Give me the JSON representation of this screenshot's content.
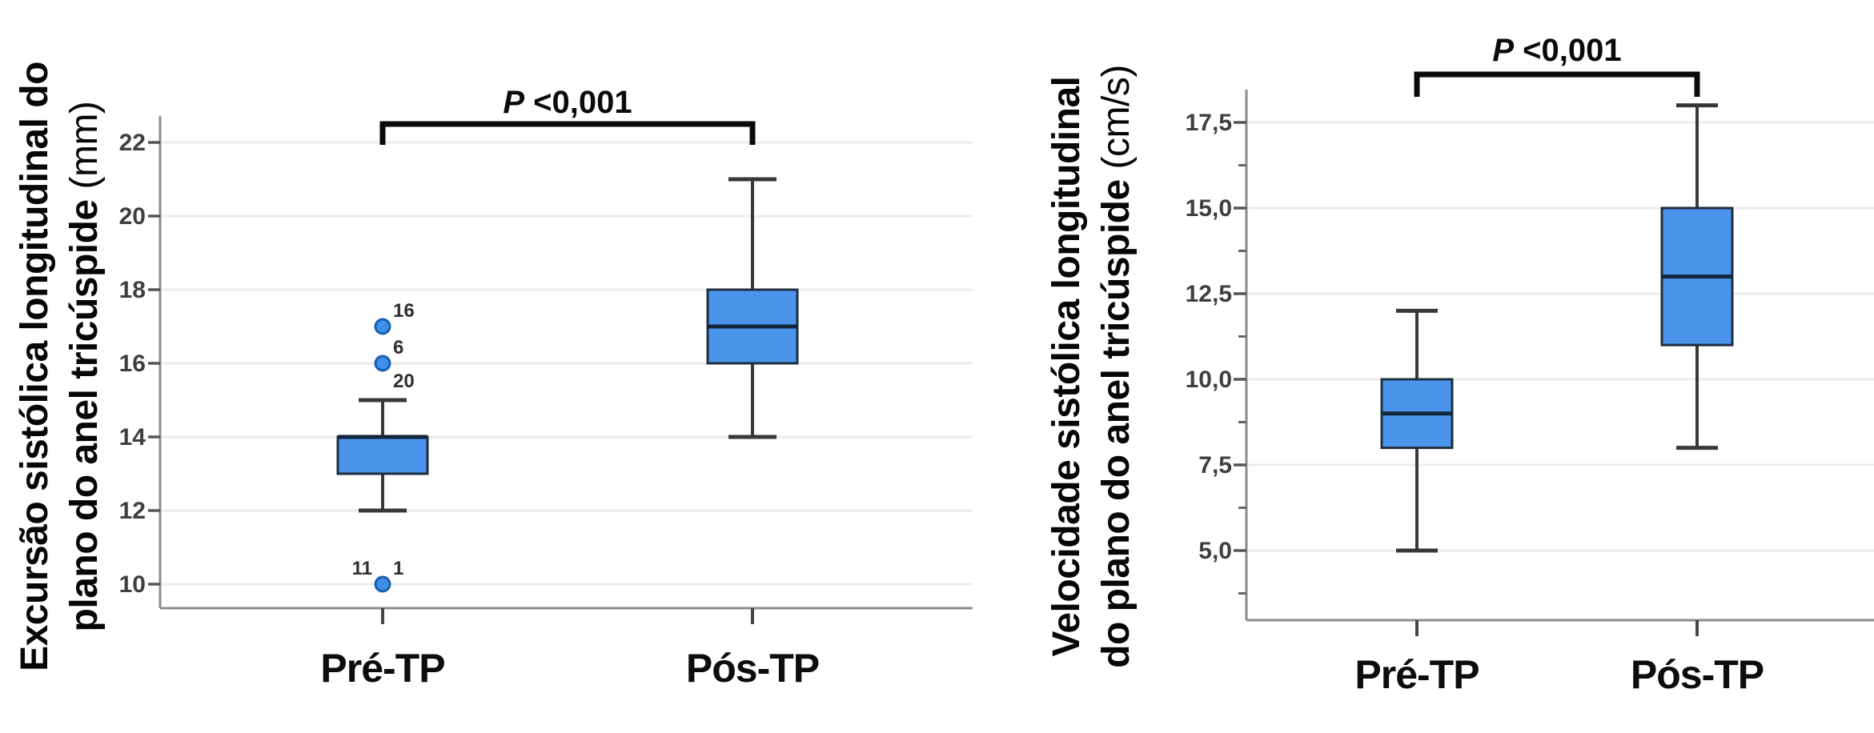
{
  "figure": {
    "background": "#ffffff"
  },
  "colors": {
    "box_fill": "#4a94eb",
    "box_border": "#1f2f3f",
    "median": "#13253a",
    "whisker": "#383838",
    "grid": "#ececec",
    "axis": "#8c8c8c",
    "outlier_fill": "#3f8ee8",
    "outlier_stroke": "#1a5fb0",
    "annotation": "#0a0a0a",
    "tick_label": "#3f3f3f",
    "category_label": "#0d0d0d"
  },
  "chart_data": [
    {
      "type": "box",
      "panel": "left",
      "ylabel": {
        "line1": "Excursão sistólica longitudinal do",
        "line2": "plano do anel tricúspide",
        "unit": " (mm)",
        "full": "Excursão sistólica longitudinal do plano do anel tricúspide (mm)"
      },
      "p_annotation": {
        "prefix": "P",
        "rest": " <0,001",
        "full": "P <0,001"
      },
      "categories": [
        "Pré-TP",
        "Pós-TP"
      ],
      "ylim": [
        9.3,
        22.7
      ],
      "grid": true,
      "yticks": [
        {
          "v": 10,
          "label": "10"
        },
        {
          "v": 12,
          "label": "12"
        },
        {
          "v": 14,
          "label": "14"
        },
        {
          "v": 16,
          "label": "16"
        },
        {
          "v": 18,
          "label": "18"
        },
        {
          "v": 20,
          "label": "20"
        },
        {
          "v": 22,
          "label": "22"
        }
      ],
      "minor_ticks": [],
      "boxes": [
        {
          "category": "Pré-TP",
          "whisker_low": 12,
          "q1": 13,
          "median": 14,
          "q3": 14,
          "whisker_high": 15,
          "outliers": [
            {
              "value": 17,
              "labels": [
                {
                  "text": "16",
                  "side": "ne"
                }
              ]
            },
            {
              "value": 16,
              "labels": [
                {
                  "text": "6",
                  "side": "ne"
                },
                {
                  "text": "20",
                  "side": "se"
                }
              ]
            },
            {
              "value": 10,
              "labels": [
                {
                  "text": "11",
                  "side": "nw"
                },
                {
                  "text": "1",
                  "side": "ne"
                }
              ]
            }
          ]
        },
        {
          "category": "Pós-TP",
          "whisker_low": 14,
          "q1": 16,
          "median": 17,
          "q3": 18,
          "whisker_high": 21,
          "outliers": []
        }
      ]
    },
    {
      "type": "box",
      "panel": "right",
      "ylabel": {
        "line1": "Velocidade  sistólica longitudinal",
        "line2": "do plano do anel tricúspide",
        "unit": " (cm/s)",
        "full": "Velocidade sistólica longitudinal do plano do anel tricúspide (cm/s)"
      },
      "p_annotation": {
        "prefix": "P",
        "rest": " <0,001",
        "full": "P <0,001"
      },
      "categories": [
        "Pré-TP",
        "Pós-TP"
      ],
      "ylim": [
        3.0,
        18.5
      ],
      "grid": true,
      "yticks": [
        {
          "v": 5.0,
          "label": "5,0"
        },
        {
          "v": 7.5,
          "label": "7,5"
        },
        {
          "v": 10.0,
          "label": "10,0"
        },
        {
          "v": 12.5,
          "label": "12,5"
        },
        {
          "v": 15.0,
          "label": "15,0"
        },
        {
          "v": 17.5,
          "label": "17,5"
        }
      ],
      "minor_ticks": [
        3.75,
        6.25,
        8.75,
        11.25,
        13.75,
        16.25
      ],
      "boxes": [
        {
          "category": "Pré-TP",
          "whisker_low": 5,
          "q1": 8,
          "median": 9,
          "q3": 10,
          "whisker_high": 12,
          "outliers": []
        },
        {
          "category": "Pós-TP",
          "whisker_low": 8,
          "q1": 11,
          "median": 13,
          "q3": 15,
          "whisker_high": 18,
          "outliers": []
        }
      ]
    }
  ]
}
